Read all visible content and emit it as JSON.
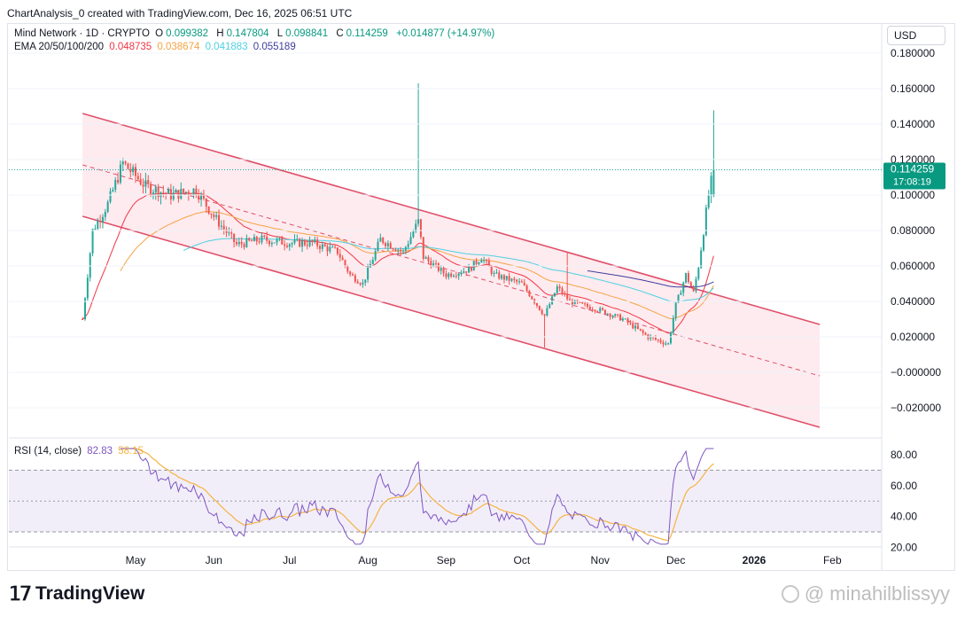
{
  "header": {
    "created_text": "ChartAnalysis_0 created with TradingView.com, Dec 16, 2025 06:51 UTC"
  },
  "legend": {
    "symbol": "Mind Network · 1D · CRYPTO",
    "ohlc": [
      {
        "label": "O",
        "value": "0.099382"
      },
      {
        "label": "H",
        "value": "0.147804"
      },
      {
        "label": "L",
        "value": "0.098841"
      },
      {
        "label": "C",
        "value": "0.114259"
      }
    ],
    "change": "+0.014877 (+14.97%)",
    "ema_label": "EMA 20/50/100/200",
    "ema_values": [
      "0.048735",
      "0.038674",
      "0.041883",
      "0.055189"
    ]
  },
  "colors": {
    "up": "#26a69a",
    "down": "#ef5350",
    "ema20": "#f23645",
    "ema50": "#f5a343",
    "ema100": "#4dd0e1",
    "ema200": "#3f3d9e",
    "channel": "#e0506a",
    "rsi": "#7e57c2",
    "rsi_ma": "#f5b342"
  },
  "currency": "USD",
  "price_tag": {
    "value": "0.114259",
    "countdown": "17:08:19"
  },
  "rsi": {
    "label": "RSI (14, close)",
    "value": "82.83",
    "ma_value": "58.15"
  },
  "chart_data": {
    "type": "candlestick",
    "price_axis": {
      "ticks": [
        "0.180000",
        "0.160000",
        "0.140000",
        "0.120000",
        "0.100000",
        "0.080000",
        "0.060000",
        "0.040000",
        "0.020000",
        "−0.000000",
        "−0.020000"
      ],
      "range": [
        -0.033,
        0.186
      ]
    },
    "time_axis": {
      "labels": [
        "May",
        "Jun",
        "Jul",
        "Aug",
        "Sep",
        "Oct",
        "Nov",
        "Dec",
        "2026",
        "Feb"
      ],
      "label_dates": [
        "2025-05-01",
        "2025-06-01",
        "2025-07-01",
        "2025-08-01",
        "2025-09-01",
        "2025-10-01",
        "2025-11-01",
        "2025-12-01",
        "2026-01-01",
        "2026-02-01"
      ]
    },
    "key_points": [
      {
        "date": "2025-04-10",
        "close": 0.03
      },
      {
        "date": "2025-04-14",
        "close": 0.08
      },
      {
        "date": "2025-04-20",
        "close": 0.095
      },
      {
        "date": "2025-04-26",
        "close": 0.118
      },
      {
        "date": "2025-05-05",
        "close": 0.105
      },
      {
        "date": "2025-05-15",
        "close": 0.1
      },
      {
        "date": "2025-05-25",
        "close": 0.103
      },
      {
        "date": "2025-06-01",
        "close": 0.088
      },
      {
        "date": "2025-06-10",
        "close": 0.072
      },
      {
        "date": "2025-06-20",
        "close": 0.075
      },
      {
        "date": "2025-07-01",
        "close": 0.073
      },
      {
        "date": "2025-07-10",
        "close": 0.073
      },
      {
        "date": "2025-07-20",
        "close": 0.068
      },
      {
        "date": "2025-07-25",
        "close": 0.055
      },
      {
        "date": "2025-07-30",
        "close": 0.05
      },
      {
        "date": "2025-08-06",
        "close": 0.075
      },
      {
        "date": "2025-08-15",
        "close": 0.068
      },
      {
        "date": "2025-08-21",
        "close": 0.085
      },
      {
        "date": "2025-08-23",
        "close": 0.065
      },
      {
        "date": "2025-09-01",
        "close": 0.055
      },
      {
        "date": "2025-09-10",
        "close": 0.058
      },
      {
        "date": "2025-09-15",
        "close": 0.065
      },
      {
        "date": "2025-09-20",
        "close": 0.055
      },
      {
        "date": "2025-10-01",
        "close": 0.05
      },
      {
        "date": "2025-10-10",
        "close": 0.032
      },
      {
        "date": "2025-10-15",
        "close": 0.048
      },
      {
        "date": "2025-10-20",
        "close": 0.04
      },
      {
        "date": "2025-11-01",
        "close": 0.035
      },
      {
        "date": "2025-11-10",
        "close": 0.03
      },
      {
        "date": "2025-11-20",
        "close": 0.02
      },
      {
        "date": "2025-11-28",
        "close": 0.016
      },
      {
        "date": "2025-12-01",
        "close": 0.038
      },
      {
        "date": "2025-12-05",
        "close": 0.055
      },
      {
        "date": "2025-12-08",
        "close": 0.045
      },
      {
        "date": "2025-12-10",
        "close": 0.06
      },
      {
        "date": "2025-12-12",
        "close": 0.08
      },
      {
        "date": "2025-12-14",
        "close": 0.1
      },
      {
        "date": "2025-12-16",
        "close": 0.114259
      }
    ],
    "spikes": [
      {
        "date": "2025-08-21",
        "high": 0.163
      },
      {
        "date": "2025-10-19",
        "high": 0.068
      },
      {
        "date": "2025-10-10",
        "low": 0.014
      },
      {
        "date": "2025-12-16",
        "high": 0.147804
      }
    ],
    "channel": {
      "upper": [
        {
          "date": "2025-04-10",
          "value": 0.146
        },
        {
          "date": "2026-01-27",
          "value": 0.027
        }
      ],
      "lower": [
        {
          "date": "2025-04-10",
          "value": 0.088
        },
        {
          "date": "2026-01-27",
          "value": -0.031
        }
      ],
      "mid": [
        {
          "date": "2025-04-10",
          "value": 0.117
        },
        {
          "date": "2026-01-27",
          "value": -0.002
        }
      ]
    },
    "rsi_axis": {
      "ticks": [
        "80.00",
        "60.00",
        "40.00",
        "20.00"
      ],
      "range": [
        18,
        87
      ],
      "bands": [
        30,
        70
      ]
    }
  }
}
